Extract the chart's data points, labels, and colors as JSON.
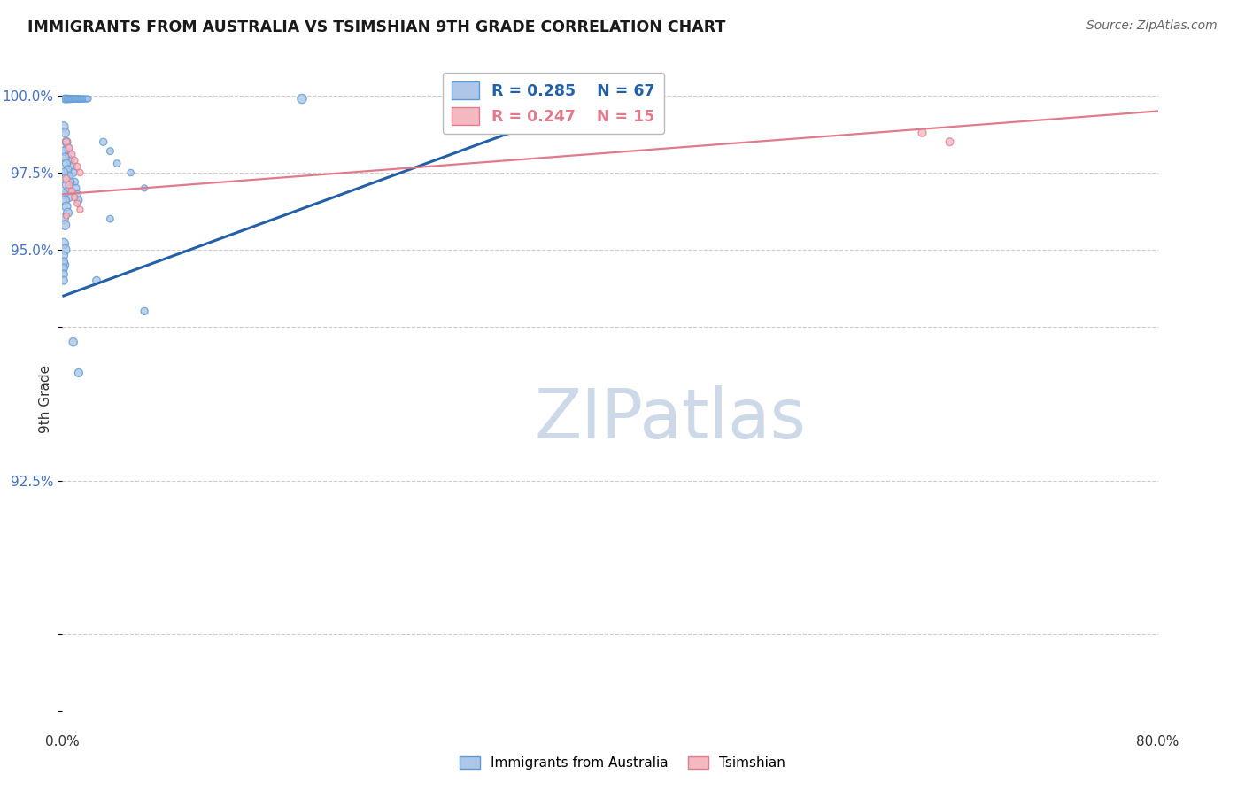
{
  "title": "IMMIGRANTS FROM AUSTRALIA VS TSIMSHIAN 9TH GRADE CORRELATION CHART",
  "source": "Source: ZipAtlas.com",
  "ylabel": "9th Grade",
  "xlim": [
    0.0,
    0.8
  ],
  "ylim": [
    0.795,
    1.008
  ],
  "xtick_vals": [
    0.0,
    0.2,
    0.4,
    0.6,
    0.8
  ],
  "xticklabels": [
    "0.0%",
    "",
    "",
    "",
    "80.0%"
  ],
  "ytick_vals": [
    0.8,
    0.825,
    0.875,
    0.925,
    0.95,
    0.975,
    1.0
  ],
  "yticklabels": [
    "",
    "",
    "92.5%",
    "",
    "95.0%",
    "97.5%",
    "100.0%"
  ],
  "background_color": "#ffffff",
  "grid_color": "#cccccc",
  "blue_fill": "#aec6e8",
  "blue_edge": "#5b9bd5",
  "pink_fill": "#f4b8c1",
  "pink_edge": "#e07b8c",
  "blue_line_color": "#2460a7",
  "pink_line_color": "#e07b8c",
  "legend_R_blue": "0.285",
  "legend_N_blue": "67",
  "legend_R_pink": "0.247",
  "legend_N_pink": "15",
  "blue_x": [
    0.002,
    0.003,
    0.004,
    0.005,
    0.006,
    0.007,
    0.008,
    0.009,
    0.01,
    0.011,
    0.012,
    0.013,
    0.014,
    0.015,
    0.016,
    0.017,
    0.018,
    0.019,
    0.001,
    0.002,
    0.003,
    0.004,
    0.005,
    0.006,
    0.007,
    0.008,
    0.009,
    0.01,
    0.011,
    0.012,
    0.001,
    0.002,
    0.003,
    0.004,
    0.005,
    0.006,
    0.001,
    0.002,
    0.003,
    0.004,
    0.005,
    0.001,
    0.002,
    0.003,
    0.004,
    0.001,
    0.002,
    0.001,
    0.002,
    0.001,
    0.03,
    0.035,
    0.04,
    0.05,
    0.06,
    0.035,
    0.025,
    0.06,
    0.001,
    0.001,
    0.001,
    0.001,
    0.001,
    0.175,
    0.395,
    0.008,
    0.012
  ],
  "blue_y": [
    0.999,
    0.999,
    0.999,
    0.999,
    0.999,
    0.999,
    0.999,
    0.999,
    0.999,
    0.999,
    0.999,
    0.999,
    0.999,
    0.999,
    0.999,
    0.999,
    0.999,
    0.999,
    0.99,
    0.988,
    0.985,
    0.983,
    0.981,
    0.979,
    0.977,
    0.975,
    0.972,
    0.97,
    0.968,
    0.966,
    0.982,
    0.98,
    0.978,
    0.976,
    0.974,
    0.972,
    0.975,
    0.973,
    0.971,
    0.969,
    0.967,
    0.968,
    0.966,
    0.964,
    0.962,
    0.96,
    0.958,
    0.952,
    0.95,
    0.945,
    0.985,
    0.982,
    0.978,
    0.975,
    0.97,
    0.96,
    0.94,
    0.93,
    0.948,
    0.946,
    0.944,
    0.942,
    0.94,
    0.999,
    0.999,
    0.92,
    0.91
  ],
  "blue_sizes": [
    40,
    38,
    36,
    35,
    33,
    32,
    30,
    30,
    30,
    30,
    28,
    28,
    28,
    26,
    26,
    25,
    25,
    24,
    55,
    52,
    50,
    48,
    46,
    44,
    42,
    40,
    38,
    36,
    35,
    34,
    48,
    46,
    44,
    42,
    40,
    38,
    52,
    50,
    48,
    46,
    44,
    56,
    54,
    52,
    50,
    60,
    58,
    65,
    63,
    70,
    35,
    32,
    30,
    28,
    25,
    30,
    38,
    35,
    45,
    44,
    43,
    42,
    41,
    55,
    70,
    45,
    42
  ],
  "pink_x": [
    0.003,
    0.005,
    0.007,
    0.009,
    0.011,
    0.013,
    0.003,
    0.005,
    0.007,
    0.009,
    0.011,
    0.013,
    0.003,
    0.628,
    0.648
  ],
  "pink_y": [
    0.985,
    0.983,
    0.981,
    0.979,
    0.977,
    0.975,
    0.973,
    0.971,
    0.969,
    0.967,
    0.965,
    0.963,
    0.961,
    0.988,
    0.985
  ],
  "pink_sizes": [
    35,
    33,
    31,
    30,
    29,
    28,
    34,
    32,
    30,
    28,
    27,
    26,
    25,
    42,
    40
  ],
  "blue_line_x0": 0.001,
  "blue_line_y0": 0.935,
  "blue_line_x1": 0.395,
  "blue_line_y1": 0.999,
  "pink_line_x0": 0.0,
  "pink_line_y0": 0.968,
  "pink_line_x1": 0.8,
  "pink_line_y1": 0.995,
  "watermark_text": "ZIPatlas",
  "watermark_color": "#cdd8e8"
}
